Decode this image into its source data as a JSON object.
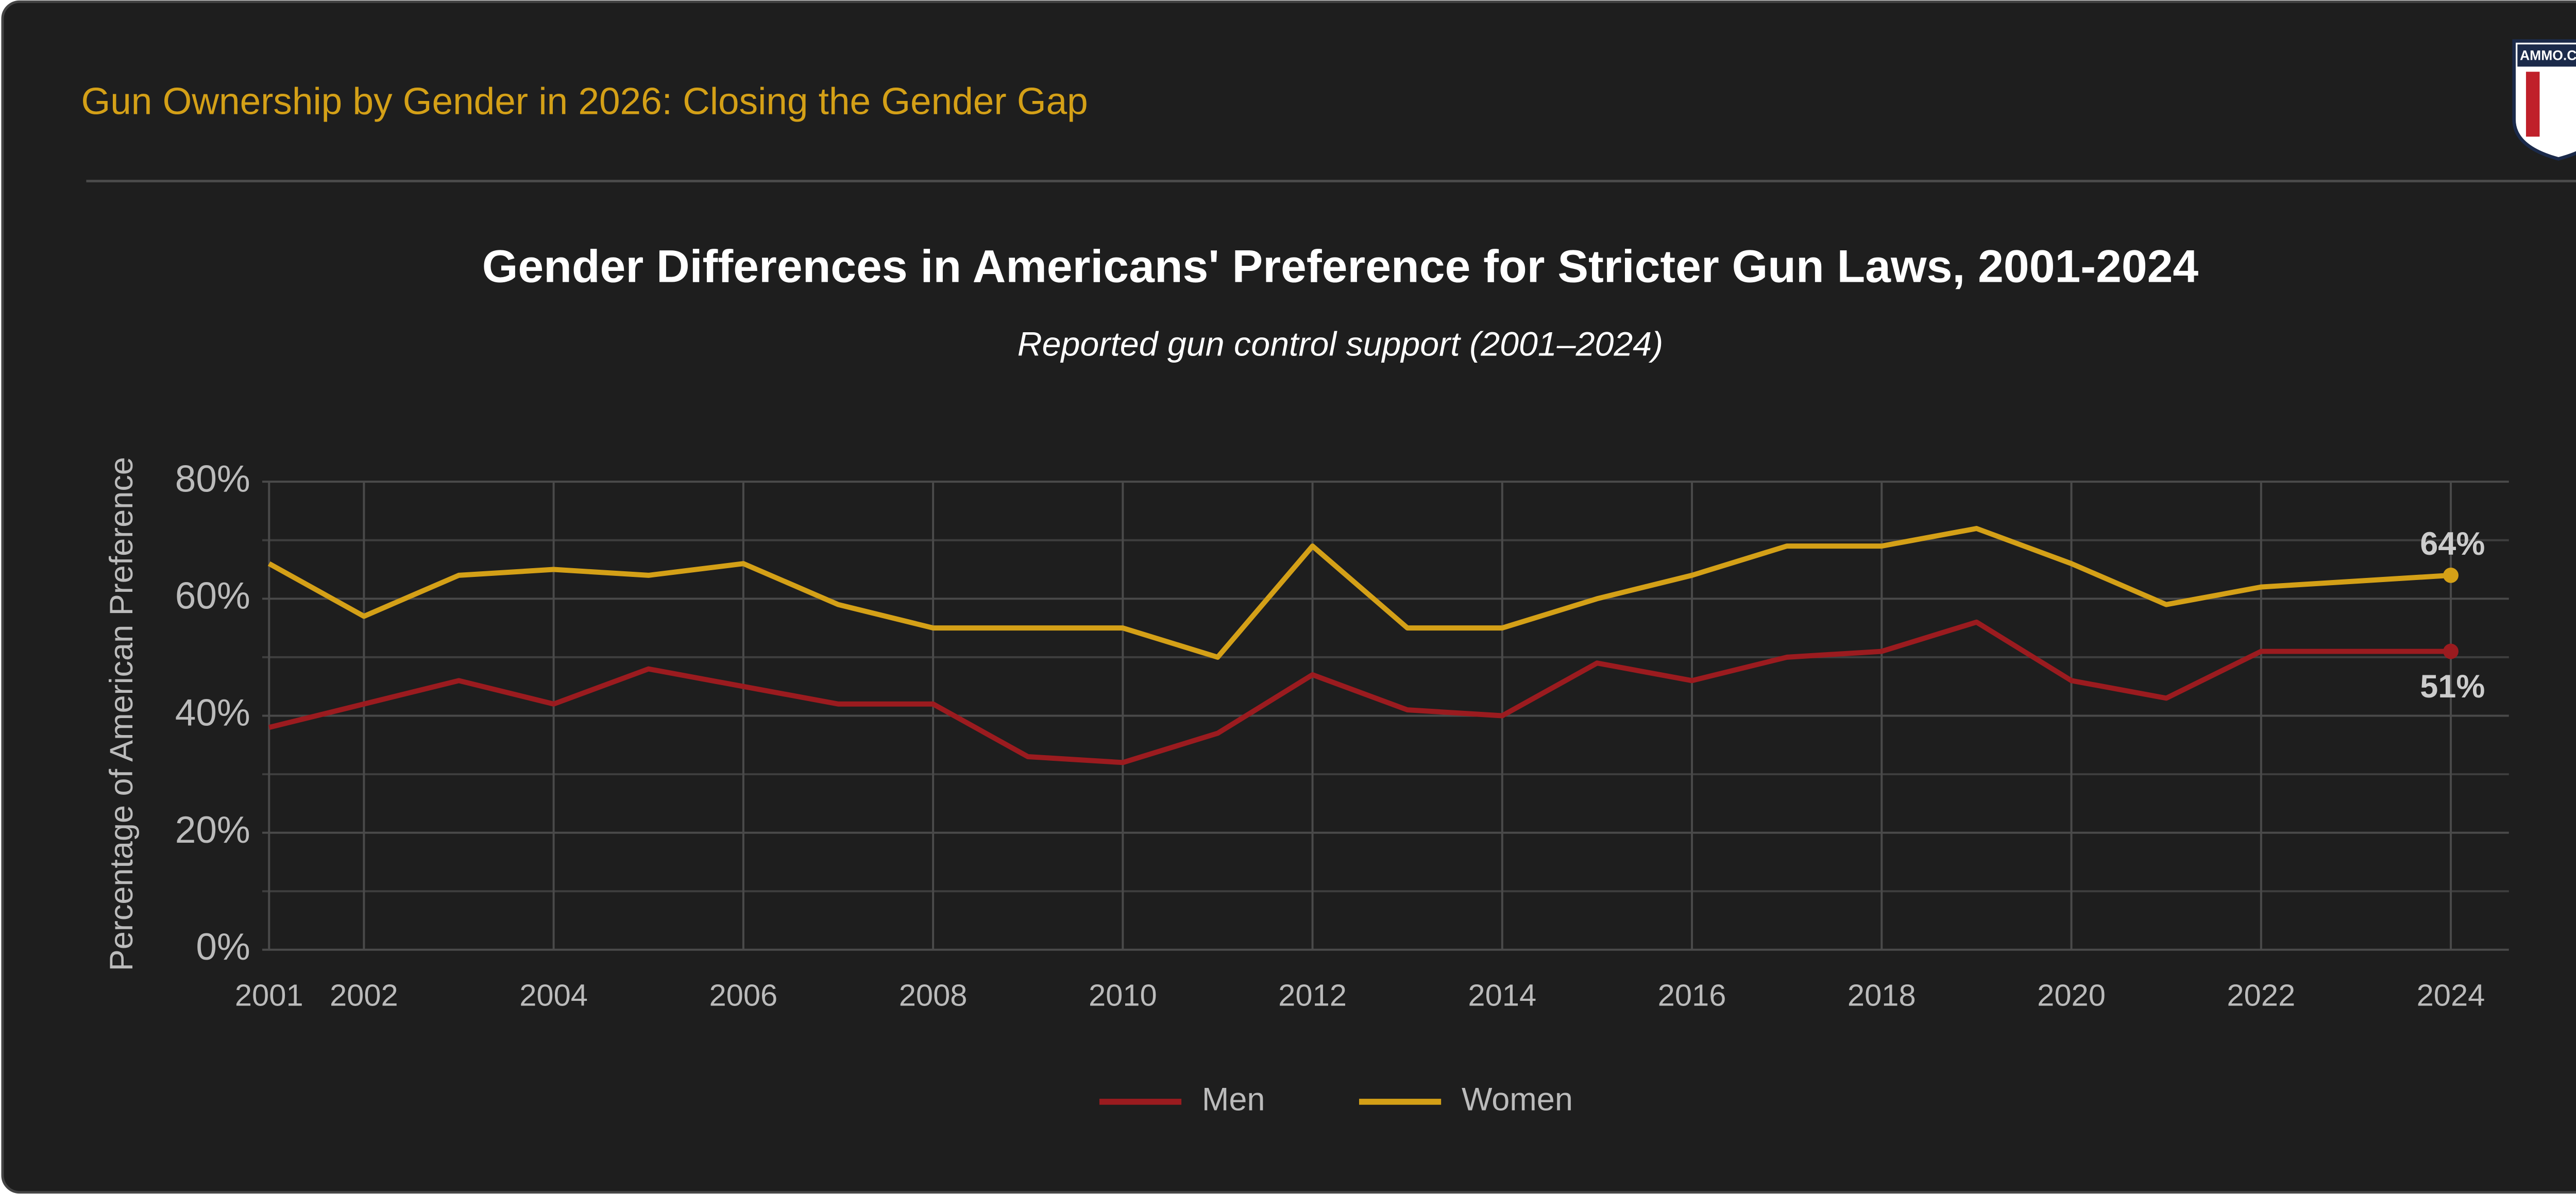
{
  "header": {
    "title": "Gun Ownership by Gender in 2026: Closing the Gender Gap",
    "logo": "AMMO.COM"
  },
  "chart_data": {
    "type": "line",
    "title": "Gender Differences in Americans' Preference for Stricter Gun Laws, 2001-2024",
    "subtitle": "Reported gun control support (2001–2024)",
    "y_label": "Percentage of American Preference",
    "x": [
      2001,
      2002,
      2003,
      2004,
      2005,
      2006,
      2007,
      2008,
      2009,
      2010,
      2011,
      2012,
      2013,
      2014,
      2015,
      2016,
      2017,
      2018,
      2019,
      2020,
      2021,
      2022,
      2023,
      2024
    ],
    "xlim": [
      2001,
      2024
    ],
    "xticks": [
      2001,
      2002,
      2004,
      2006,
      2008,
      2010,
      2012,
      2014,
      2016,
      2018,
      2020,
      2022,
      2024
    ],
    "ylim": [
      0,
      80
    ],
    "yticks": [
      {
        "value": 0,
        "label": "0%"
      },
      {
        "value": 20,
        "label": "20%"
      },
      {
        "value": 40,
        "label": "40%"
      },
      {
        "value": 60,
        "label": "60%"
      },
      {
        "value": 80,
        "label": "80%"
      }
    ],
    "y_minor_gridlines": [
      10,
      30,
      50,
      70
    ],
    "grid": true,
    "legend": "bottom",
    "series": [
      {
        "name": "Men",
        "color": "#9b1b1f",
        "values": [
          38,
          42,
          46,
          42,
          48,
          45,
          42,
          42,
          33,
          32,
          37,
          47,
          41,
          40,
          49,
          46,
          50,
          51,
          56,
          46,
          43,
          51,
          51,
          51
        ],
        "value_labels": [
          null,
          null,
          null,
          null,
          null,
          null,
          null,
          null,
          null,
          null,
          null,
          null,
          null,
          null,
          null,
          null,
          null,
          null,
          null,
          null,
          null,
          null,
          null,
          "51%"
        ]
      },
      {
        "name": "Women",
        "color": "#d4a017",
        "values": [
          66,
          57,
          64,
          65,
          64,
          66,
          59,
          55,
          55,
          55,
          50,
          69,
          55,
          55,
          60,
          64,
          69,
          69,
          72,
          66,
          59,
          62,
          63,
          64
        ],
        "value_labels": [
          null,
          null,
          null,
          null,
          null,
          null,
          null,
          null,
          null,
          null,
          null,
          null,
          null,
          null,
          null,
          null,
          null,
          null,
          null,
          null,
          null,
          null,
          null,
          "64%"
        ]
      }
    ]
  }
}
